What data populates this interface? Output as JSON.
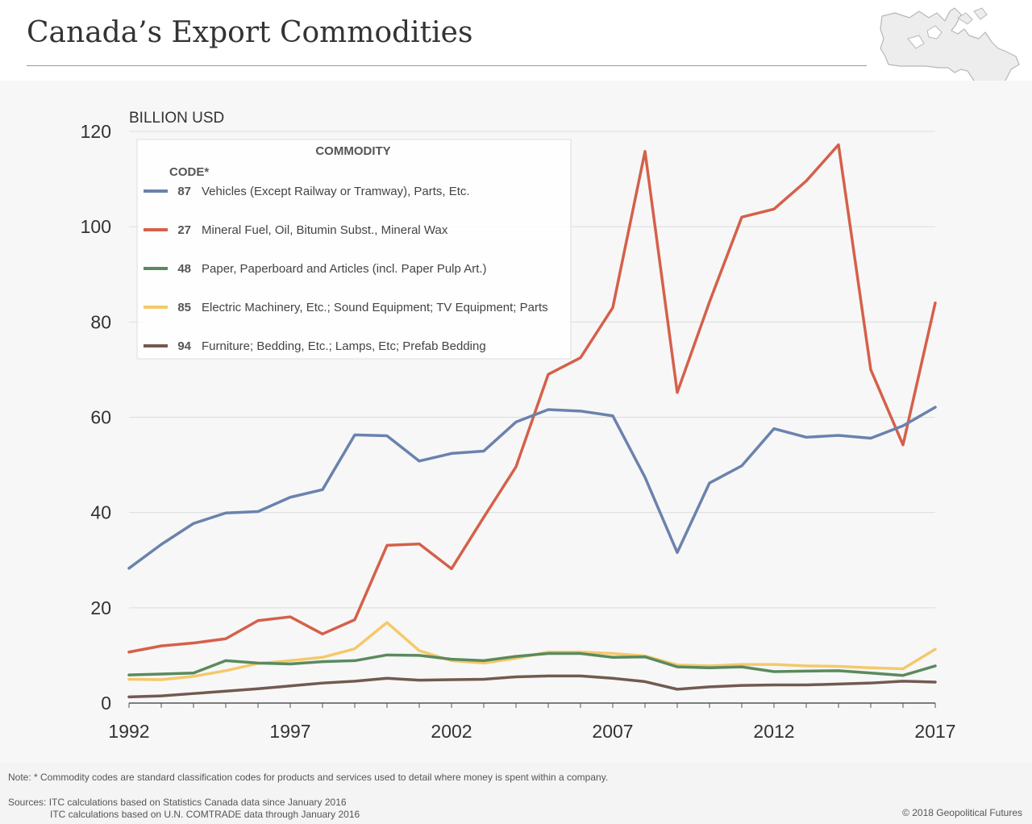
{
  "header": {
    "title": "Canada’s Export Commodities"
  },
  "footer": {
    "note": "Note: * Commodity codes are standard classification codes for products and services used to detail where money is spent within a company.",
    "source_line1": "Sources: ITC calculations based on Statistics Canada data since January 2016",
    "source_line2": "ITC calculations based on U.N. COMTRADE data through January 2016",
    "copyright": "© 2018 Geopolitical Futures"
  },
  "colors": {
    "87": "#6a82ad",
    "27": "#d5604a",
    "48": "#5a8a5e",
    "85": "#f5c96a",
    "94": "#725a50"
  },
  "chart_data": {
    "type": "line",
    "ylabel": "BILLION USD",
    "ylim": [
      0,
      120
    ],
    "yticks": [
      0,
      20,
      40,
      60,
      80,
      100,
      120
    ],
    "xlim": [
      1992,
      2017
    ],
    "xticks": [
      1992,
      1997,
      2002,
      2007,
      2012,
      2017
    ],
    "grid": true,
    "legend": {
      "placement": "top-left",
      "title": "COMMODITY",
      "code_header": "CODE*"
    },
    "x": [
      1992,
      1993,
      1994,
      1995,
      1996,
      1997,
      1998,
      1999,
      2000,
      2001,
      2002,
      2003,
      2004,
      2005,
      2006,
      2007,
      2008,
      2009,
      2010,
      2011,
      2012,
      2013,
      2014,
      2015,
      2016,
      2017
    ],
    "series": [
      {
        "code": "87",
        "name": "Vehicles (Except Railway or Tramway), Parts, Etc.",
        "values": [
          28.3,
          33.3,
          37.7,
          39.9,
          40.2,
          43.2,
          44.8,
          56.3,
          56.1,
          50.8,
          52.4,
          52.9,
          59.0,
          61.6,
          61.3,
          60.3,
          47.4,
          31.6,
          46.2,
          49.8,
          57.6,
          55.8,
          56.2,
          55.6,
          58.2,
          62.1
        ]
      },
      {
        "code": "27",
        "name": "Mineral Fuel, Oil, Bitumin Subst., Mineral Wax",
        "values": [
          10.7,
          12.0,
          12.6,
          13.5,
          17.3,
          18.1,
          14.5,
          17.5,
          33.1,
          33.4,
          28.2,
          39.0,
          49.6,
          69.0,
          72.5,
          83.0,
          115.8,
          65.2,
          84.2,
          102.0,
          103.7,
          109.6,
          117.2,
          70.0,
          54.2,
          84.0
        ]
      },
      {
        "code": "48",
        "name": "Paper, Paperboard and Articles (incl. Paper Pulp Art.)",
        "values": [
          5.9,
          6.1,
          6.3,
          8.9,
          8.4,
          8.2,
          8.7,
          8.9,
          10.1,
          10.0,
          9.2,
          8.9,
          9.8,
          10.4,
          10.4,
          9.6,
          9.7,
          7.6,
          7.4,
          7.6,
          6.6,
          6.7,
          6.8,
          6.3,
          5.8,
          7.8
        ]
      },
      {
        "code": "85",
        "name": "Electric Machinery, Etc.; Sound Equipment; TV Equipment; Parts",
        "values": [
          5.0,
          4.9,
          5.6,
          6.8,
          8.3,
          8.9,
          9.6,
          11.4,
          16.9,
          11.0,
          8.9,
          8.4,
          9.4,
          10.7,
          10.7,
          10.4,
          9.9,
          8.0,
          7.8,
          8.1,
          8.1,
          7.8,
          7.7,
          7.4,
          7.2,
          11.3
        ]
      },
      {
        "code": "94",
        "name": "Furniture; Bedding, Etc.; Lamps, Etc; Prefab Bedding",
        "values": [
          1.3,
          1.5,
          2.0,
          2.5,
          3.0,
          3.6,
          4.2,
          4.6,
          5.2,
          4.8,
          4.9,
          5.0,
          5.5,
          5.7,
          5.7,
          5.2,
          4.5,
          2.9,
          3.4,
          3.7,
          3.8,
          3.8,
          4.0,
          4.2,
          4.6,
          4.4
        ]
      }
    ]
  }
}
